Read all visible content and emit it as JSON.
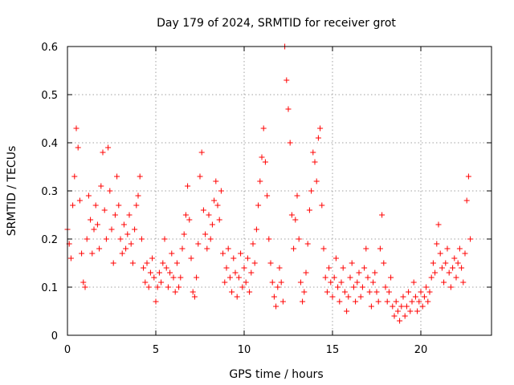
{
  "chart_data": {
    "type": "scatter",
    "title": "Day 179 of 2024, SRMTID for receiver grot",
    "xlabel": "GPS time / hours",
    "ylabel": "SRMTID / TECUs",
    "xlim": [
      0,
      24
    ],
    "ylim": [
      0,
      0.6
    ],
    "xticks": [
      0,
      5,
      10,
      15,
      20
    ],
    "yticks": [
      0,
      0.1,
      0.2,
      0.3,
      0.4,
      0.5,
      0.6
    ],
    "xtick_labels": [
      "0",
      "5",
      "10",
      "15",
      "20"
    ],
    "ytick_labels": [
      "0",
      "0.1",
      "0.2",
      "0.3",
      "0.4",
      "0.5",
      "0.6"
    ],
    "grid": true,
    "marker": "+",
    "color": "#ff0000",
    "series": [
      {
        "name": "SRMTID",
        "points": [
          [
            0.0,
            0.22
          ],
          [
            0.1,
            0.19
          ],
          [
            0.2,
            0.16
          ],
          [
            0.3,
            0.27
          ],
          [
            0.4,
            0.33
          ],
          [
            0.5,
            0.43
          ],
          [
            0.6,
            0.39
          ],
          [
            0.7,
            0.28
          ],
          [
            0.8,
            0.17
          ],
          [
            0.9,
            0.11
          ],
          [
            1.0,
            0.1
          ],
          [
            1.1,
            0.2
          ],
          [
            1.2,
            0.29
          ],
          [
            1.3,
            0.24
          ],
          [
            1.4,
            0.17
          ],
          [
            1.5,
            0.22
          ],
          [
            1.6,
            0.27
          ],
          [
            1.7,
            0.23
          ],
          [
            1.8,
            0.18
          ],
          [
            1.9,
            0.31
          ],
          [
            2.0,
            0.38
          ],
          [
            2.1,
            0.26
          ],
          [
            2.2,
            0.2
          ],
          [
            2.3,
            0.39
          ],
          [
            2.4,
            0.3
          ],
          [
            2.5,
            0.22
          ],
          [
            2.6,
            0.15
          ],
          [
            2.7,
            0.25
          ],
          [
            2.8,
            0.33
          ],
          [
            2.9,
            0.27
          ],
          [
            3.0,
            0.2
          ],
          [
            3.1,
            0.17
          ],
          [
            3.2,
            0.23
          ],
          [
            3.3,
            0.18
          ],
          [
            3.4,
            0.21
          ],
          [
            3.5,
            0.25
          ],
          [
            3.6,
            0.19
          ],
          [
            3.7,
            0.15
          ],
          [
            3.8,
            0.22
          ],
          [
            3.9,
            0.27
          ],
          [
            4.0,
            0.29
          ],
          [
            4.1,
            0.33
          ],
          [
            4.2,
            0.2
          ],
          [
            4.3,
            0.14
          ],
          [
            4.4,
            0.11
          ],
          [
            4.5,
            0.15
          ],
          [
            4.6,
            0.1
          ],
          [
            4.7,
            0.13
          ],
          [
            4.8,
            0.16
          ],
          [
            4.9,
            0.12
          ],
          [
            5.0,
            0.07
          ],
          [
            5.1,
            0.1
          ],
          [
            5.2,
            0.13
          ],
          [
            5.3,
            0.11
          ],
          [
            5.4,
            0.15
          ],
          [
            5.5,
            0.2
          ],
          [
            5.6,
            0.14
          ],
          [
            5.7,
            0.1
          ],
          [
            5.8,
            0.13
          ],
          [
            5.9,
            0.17
          ],
          [
            6.0,
            0.12
          ],
          [
            6.1,
            0.09
          ],
          [
            6.2,
            0.15
          ],
          [
            6.3,
            0.1
          ],
          [
            6.4,
            0.12
          ],
          [
            6.5,
            0.18
          ],
          [
            6.6,
            0.21
          ],
          [
            6.7,
            0.25
          ],
          [
            6.8,
            0.31
          ],
          [
            6.9,
            0.24
          ],
          [
            7.0,
            0.16
          ],
          [
            7.1,
            0.09
          ],
          [
            7.2,
            0.08
          ],
          [
            7.3,
            0.12
          ],
          [
            7.4,
            0.19
          ],
          [
            7.5,
            0.33
          ],
          [
            7.6,
            0.38
          ],
          [
            7.7,
            0.26
          ],
          [
            7.8,
            0.21
          ],
          [
            7.9,
            0.18
          ],
          [
            8.0,
            0.25
          ],
          [
            8.1,
            0.2
          ],
          [
            8.2,
            0.23
          ],
          [
            8.3,
            0.28
          ],
          [
            8.4,
            0.32
          ],
          [
            8.5,
            0.27
          ],
          [
            8.6,
            0.24
          ],
          [
            8.7,
            0.3
          ],
          [
            8.8,
            0.17
          ],
          [
            8.9,
            0.11
          ],
          [
            9.0,
            0.14
          ],
          [
            9.1,
            0.18
          ],
          [
            9.2,
            0.12
          ],
          [
            9.3,
            0.09
          ],
          [
            9.4,
            0.16
          ],
          [
            9.5,
            0.13
          ],
          [
            9.6,
            0.08
          ],
          [
            9.7,
            0.12
          ],
          [
            9.8,
            0.17
          ],
          [
            9.9,
            0.1
          ],
          [
            10.0,
            0.14
          ],
          [
            10.1,
            0.11
          ],
          [
            10.2,
            0.16
          ],
          [
            10.3,
            0.09
          ],
          [
            10.4,
            0.13
          ],
          [
            10.5,
            0.19
          ],
          [
            10.6,
            0.15
          ],
          [
            10.7,
            0.22
          ],
          [
            10.8,
            0.27
          ],
          [
            10.9,
            0.32
          ],
          [
            11.0,
            0.37
          ],
          [
            11.1,
            0.43
          ],
          [
            11.2,
            0.36
          ],
          [
            11.3,
            0.29
          ],
          [
            11.4,
            0.2
          ],
          [
            11.5,
            0.15
          ],
          [
            11.6,
            0.11
          ],
          [
            11.7,
            0.08
          ],
          [
            11.8,
            0.06
          ],
          [
            11.9,
            0.1
          ],
          [
            12.0,
            0.14
          ],
          [
            12.1,
            0.11
          ],
          [
            12.2,
            0.07
          ],
          [
            12.3,
            0.6
          ],
          [
            12.4,
            0.53
          ],
          [
            12.5,
            0.47
          ],
          [
            12.6,
            0.4
          ],
          [
            12.7,
            0.25
          ],
          [
            12.8,
            0.18
          ],
          [
            12.9,
            0.24
          ],
          [
            13.0,
            0.29
          ],
          [
            13.1,
            0.2
          ],
          [
            13.2,
            0.11
          ],
          [
            13.3,
            0.07
          ],
          [
            13.4,
            0.09
          ],
          [
            13.5,
            0.13
          ],
          [
            13.6,
            0.19
          ],
          [
            13.7,
            0.26
          ],
          [
            13.8,
            0.3
          ],
          [
            13.9,
            0.38
          ],
          [
            14.0,
            0.36
          ],
          [
            14.1,
            0.32
          ],
          [
            14.2,
            0.41
          ],
          [
            14.3,
            0.43
          ],
          [
            14.4,
            0.27
          ],
          [
            14.5,
            0.18
          ],
          [
            14.6,
            0.12
          ],
          [
            14.7,
            0.09
          ],
          [
            14.8,
            0.14
          ],
          [
            14.9,
            0.11
          ],
          [
            15.0,
            0.08
          ],
          [
            15.1,
            0.12
          ],
          [
            15.2,
            0.16
          ],
          [
            15.3,
            0.1
          ],
          [
            15.4,
            0.07
          ],
          [
            15.5,
            0.11
          ],
          [
            15.6,
            0.14
          ],
          [
            15.7,
            0.09
          ],
          [
            15.8,
            0.05
          ],
          [
            15.9,
            0.08
          ],
          [
            16.0,
            0.12
          ],
          [
            16.1,
            0.15
          ],
          [
            16.2,
            0.1
          ],
          [
            16.3,
            0.07
          ],
          [
            16.4,
            0.11
          ],
          [
            16.5,
            0.13
          ],
          [
            16.6,
            0.08
          ],
          [
            16.7,
            0.1
          ],
          [
            16.8,
            0.14
          ],
          [
            16.9,
            0.18
          ],
          [
            17.0,
            0.12
          ],
          [
            17.1,
            0.09
          ],
          [
            17.2,
            0.06
          ],
          [
            17.3,
            0.11
          ],
          [
            17.4,
            0.13
          ],
          [
            17.5,
            0.09
          ],
          [
            17.6,
            0.07
          ],
          [
            17.7,
            0.18
          ],
          [
            17.8,
            0.25
          ],
          [
            17.9,
            0.15
          ],
          [
            18.0,
            0.1
          ],
          [
            18.1,
            0.07
          ],
          [
            18.2,
            0.09
          ],
          [
            18.3,
            0.12
          ],
          [
            18.4,
            0.06
          ],
          [
            18.5,
            0.04
          ],
          [
            18.6,
            0.07
          ],
          [
            18.7,
            0.05
          ],
          [
            18.8,
            0.03
          ],
          [
            18.9,
            0.06
          ],
          [
            19.0,
            0.08
          ],
          [
            19.1,
            0.04
          ],
          [
            19.2,
            0.06
          ],
          [
            19.3,
            0.09
          ],
          [
            19.4,
            0.05
          ],
          [
            19.5,
            0.07
          ],
          [
            19.6,
            0.11
          ],
          [
            19.7,
            0.08
          ],
          [
            19.8,
            0.05
          ],
          [
            19.9,
            0.07
          ],
          [
            20.0,
            0.09
          ],
          [
            20.1,
            0.06
          ],
          [
            20.2,
            0.08
          ],
          [
            20.3,
            0.1
          ],
          [
            20.4,
            0.07
          ],
          [
            20.5,
            0.09
          ],
          [
            20.6,
            0.12
          ],
          [
            20.7,
            0.15
          ],
          [
            20.8,
            0.13
          ],
          [
            20.9,
            0.19
          ],
          [
            21.0,
            0.23
          ],
          [
            21.1,
            0.17
          ],
          [
            21.2,
            0.14
          ],
          [
            21.3,
            0.11
          ],
          [
            21.4,
            0.15
          ],
          [
            21.5,
            0.18
          ],
          [
            21.6,
            0.13
          ],
          [
            21.7,
            0.1
          ],
          [
            21.8,
            0.14
          ],
          [
            21.9,
            0.16
          ],
          [
            22.0,
            0.12
          ],
          [
            22.1,
            0.15
          ],
          [
            22.2,
            0.18
          ],
          [
            22.3,
            0.14
          ],
          [
            22.4,
            0.11
          ],
          [
            22.5,
            0.17
          ],
          [
            22.6,
            0.28
          ],
          [
            22.7,
            0.33
          ],
          [
            22.8,
            0.2
          ]
        ]
      }
    ]
  }
}
